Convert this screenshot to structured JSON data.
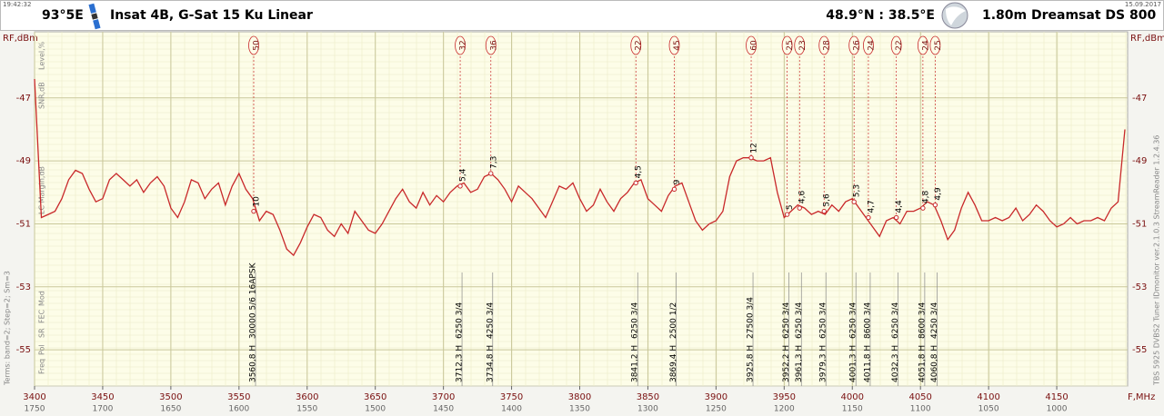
{
  "chart_data": {
    "type": "line",
    "time": "19:42:32",
    "date": "15.09.2017",
    "satellite_position": "93°5E",
    "title": "Insat 4B, G-Sat 15 Ku Linear",
    "location": "48.9°N : 38.5°E",
    "dish_size": "1.80m",
    "dish_name": "Dreamsat DS 800",
    "ylabel": "RF,dBm",
    "xlabel": "F,MHz",
    "row_labels_top": [
      "Level,%",
      "SNR,dB",
      "LC Margin,dB"
    ],
    "row_labels_bottom": [
      "Mod",
      "FEC",
      "SR",
      "Pol",
      "Freq"
    ],
    "terms": "Terms:  band=2; Step=2; Sm=3",
    "software": "TBS 5925 DVBS2 Tuner   IDmonitor  ver.2.1.0.3   StreamReader 1.2.4.36",
    "color": "#c8282a",
    "grid": true,
    "xlim": [
      3400,
      4202
    ],
    "xticks": [
      3400,
      3450,
      3500,
      3550,
      3600,
      3650,
      3700,
      3750,
      3800,
      3850,
      3900,
      3950,
      4000,
      4050,
      4100,
      4150
    ],
    "x2lim": [
      1750,
      948
    ],
    "x2ticks": [
      1750,
      1700,
      1650,
      1600,
      1550,
      1500,
      1450,
      1400,
      1350,
      1300,
      1250,
      1200,
      1150,
      1100,
      1050,
      1000
    ],
    "ylim": [
      -56.15,
      -44.9
    ],
    "yticks": [
      -47,
      -49,
      -51,
      -53,
      -55
    ],
    "x": [
      3400,
      3405,
      3410,
      3415,
      3420,
      3425,
      3430,
      3435,
      3440,
      3445,
      3450,
      3455,
      3460,
      3465,
      3470,
      3475,
      3480,
      3485,
      3490,
      3495,
      3500,
      3505,
      3510,
      3515,
      3520,
      3525,
      3530,
      3535,
      3540,
      3545,
      3550,
      3555,
      3560,
      3565,
      3570,
      3575,
      3580,
      3585,
      3590,
      3595,
      3600,
      3605,
      3610,
      3615,
      3620,
      3625,
      3630,
      3635,
      3640,
      3645,
      3650,
      3655,
      3660,
      3665,
      3670,
      3675,
      3680,
      3685,
      3690,
      3695,
      3700,
      3705,
      3710,
      3715,
      3720,
      3725,
      3730,
      3735,
      3740,
      3745,
      3750,
      3755,
      3760,
      3765,
      3770,
      3775,
      3780,
      3785,
      3790,
      3795,
      3800,
      3805,
      3810,
      3815,
      3820,
      3825,
      3830,
      3835,
      3840,
      3845,
      3850,
      3855,
      3860,
      3865,
      3870,
      3875,
      3880,
      3885,
      3890,
      3895,
      3900,
      3905,
      3910,
      3915,
      3920,
      3925,
      3930,
      3935,
      3940,
      3945,
      3950,
      3955,
      3960,
      3965,
      3970,
      3975,
      3980,
      3985,
      3990,
      3995,
      4000,
      4005,
      4010,
      4015,
      4020,
      4025,
      4030,
      4035,
      4040,
      4045,
      4050,
      4055,
      4060,
      4065,
      4070,
      4075,
      4080,
      4085,
      4090,
      4095,
      4100,
      4105,
      4110,
      4115,
      4120,
      4125,
      4130,
      4135,
      4140,
      4145,
      4150,
      4155,
      4160,
      4165,
      4170,
      4175,
      4180,
      4185,
      4190,
      4195,
      4200
    ],
    "values": [
      -46.4,
      -50.8,
      -50.7,
      -50.6,
      -50.2,
      -49.6,
      -49.3,
      -49.4,
      -49.9,
      -50.3,
      -50.2,
      -49.6,
      -49.4,
      -49.6,
      -49.8,
      -49.6,
      -50.0,
      -49.7,
      -49.5,
      -49.8,
      -50.5,
      -50.8,
      -50.3,
      -49.6,
      -49.7,
      -50.2,
      -49.9,
      -49.7,
      -50.4,
      -49.8,
      -49.4,
      -49.9,
      -50.2,
      -50.9,
      -50.6,
      -50.7,
      -51.2,
      -51.8,
      -52.0,
      -51.6,
      -51.1,
      -50.7,
      -50.8,
      -51.2,
      -51.4,
      -51.0,
      -51.3,
      -50.6,
      -50.9,
      -51.2,
      -51.3,
      -51.0,
      -50.6,
      -50.2,
      -49.9,
      -50.3,
      -50.5,
      -50.0,
      -50.4,
      -50.1,
      -50.3,
      -50.0,
      -49.8,
      -49.7,
      -50.0,
      -49.9,
      -49.5,
      -49.4,
      -49.6,
      -49.9,
      -50.3,
      -49.8,
      -50.0,
      -50.2,
      -50.5,
      -50.8,
      -50.3,
      -49.8,
      -49.9,
      -49.7,
      -50.2,
      -50.6,
      -50.4,
      -49.9,
      -50.3,
      -50.6,
      -50.2,
      -50.0,
      -49.7,
      -49.6,
      -50.2,
      -50.4,
      -50.6,
      -50.1,
      -49.8,
      -49.7,
      -50.3,
      -50.9,
      -51.2,
      -51.0,
      -50.9,
      -50.6,
      -49.5,
      -49.0,
      -48.9,
      -48.9,
      -49.0,
      -49.0,
      -48.9,
      -50.0,
      -50.8,
      -50.6,
      -50.4,
      -50.5,
      -50.7,
      -50.6,
      -50.7,
      -50.4,
      -50.6,
      -50.3,
      -50.2,
      -50.5,
      -50.8,
      -51.1,
      -51.4,
      -50.9,
      -50.8,
      -51.0,
      -50.6,
      -50.6,
      -50.5,
      -50.3,
      -50.4,
      -50.9,
      -51.5,
      -51.2,
      -50.5,
      -50.0,
      -50.4,
      -50.9,
      -50.9,
      -50.8,
      -50.9,
      -50.8,
      -50.5,
      -50.9,
      -50.7,
      -50.4,
      -50.6,
      -50.9,
      -51.1,
      -51.0,
      -50.8,
      -51.0,
      -50.9,
      -50.9,
      -50.8,
      -50.9,
      -50.5,
      -50.3,
      -48.0
    ],
    "markers": [
      {
        "freq": 3560.8,
        "freq_label": "3560,8 H",
        "sr_fec": "30000 5/6 16APSK",
        "level": 50,
        "snr": "10",
        "level_dbm": -50.6
      },
      {
        "freq": 3712.3,
        "freq_label": "3712,3 H",
        "sr_fec": "6250 3/4",
        "level": 32,
        "snr": "5,4",
        "level_dbm": -49.8
      },
      {
        "freq": 3734.8,
        "freq_label": "3734,8 H",
        "sr_fec": "4250 3/4",
        "level": 36,
        "snr": "7,3",
        "level_dbm": -49.4
      },
      {
        "freq": 3841.2,
        "freq_label": "3841,2 H",
        "sr_fec": "6250 3/4",
        "level": 22,
        "snr": "4,5",
        "level_dbm": -49.7
      },
      {
        "freq": 3869.4,
        "freq_label": "3869,4 H",
        "sr_fec": "2500 1/2",
        "level": 45,
        "snr": "9",
        "level_dbm": -49.9
      },
      {
        "freq": 3925.8,
        "freq_label": "3925,8 H",
        "sr_fec": "27500 3/4",
        "level": 60,
        "snr": "12",
        "level_dbm": -48.9
      },
      {
        "freq": 3952.2,
        "freq_label": "3952,2 H",
        "sr_fec": "6250 3/4",
        "level": 25,
        "snr": "5",
        "level_dbm": -50.7
      },
      {
        "freq": 3961.3,
        "freq_label": "3961,3 H",
        "sr_fec": "6250 3/4",
        "level": 23,
        "snr": "4,6",
        "level_dbm": -50.5
      },
      {
        "freq": 3979.3,
        "freq_label": "3979,3 H",
        "sr_fec": "6250 3/4",
        "level": 28,
        "snr": "5,6",
        "level_dbm": -50.6
      },
      {
        "freq": 4001.3,
        "freq_label": "4001,3 H",
        "sr_fec": "6250 3/4",
        "level": 26,
        "snr": "5,3",
        "level_dbm": -50.3
      },
      {
        "freq": 4011.8,
        "freq_label": "4011,8 H",
        "sr_fec": "8600 3/4",
        "level": 24,
        "snr": "4,7",
        "level_dbm": -50.8
      },
      {
        "freq": 4032.3,
        "freq_label": "4032,3 H",
        "sr_fec": "6250 3/4",
        "level": 22,
        "snr": "4,4",
        "level_dbm": -50.8
      },
      {
        "freq": 4051.8,
        "freq_label": "4051,8 H",
        "sr_fec": "8600 3/4",
        "level": 24,
        "snr": "4,8",
        "level_dbm": -50.5
      },
      {
        "freq": 4060.8,
        "freq_label": "4060,8 H",
        "sr_fec": "4250 3/4",
        "level": 25,
        "snr": "4,9",
        "level_dbm": -50.4
      }
    ]
  }
}
